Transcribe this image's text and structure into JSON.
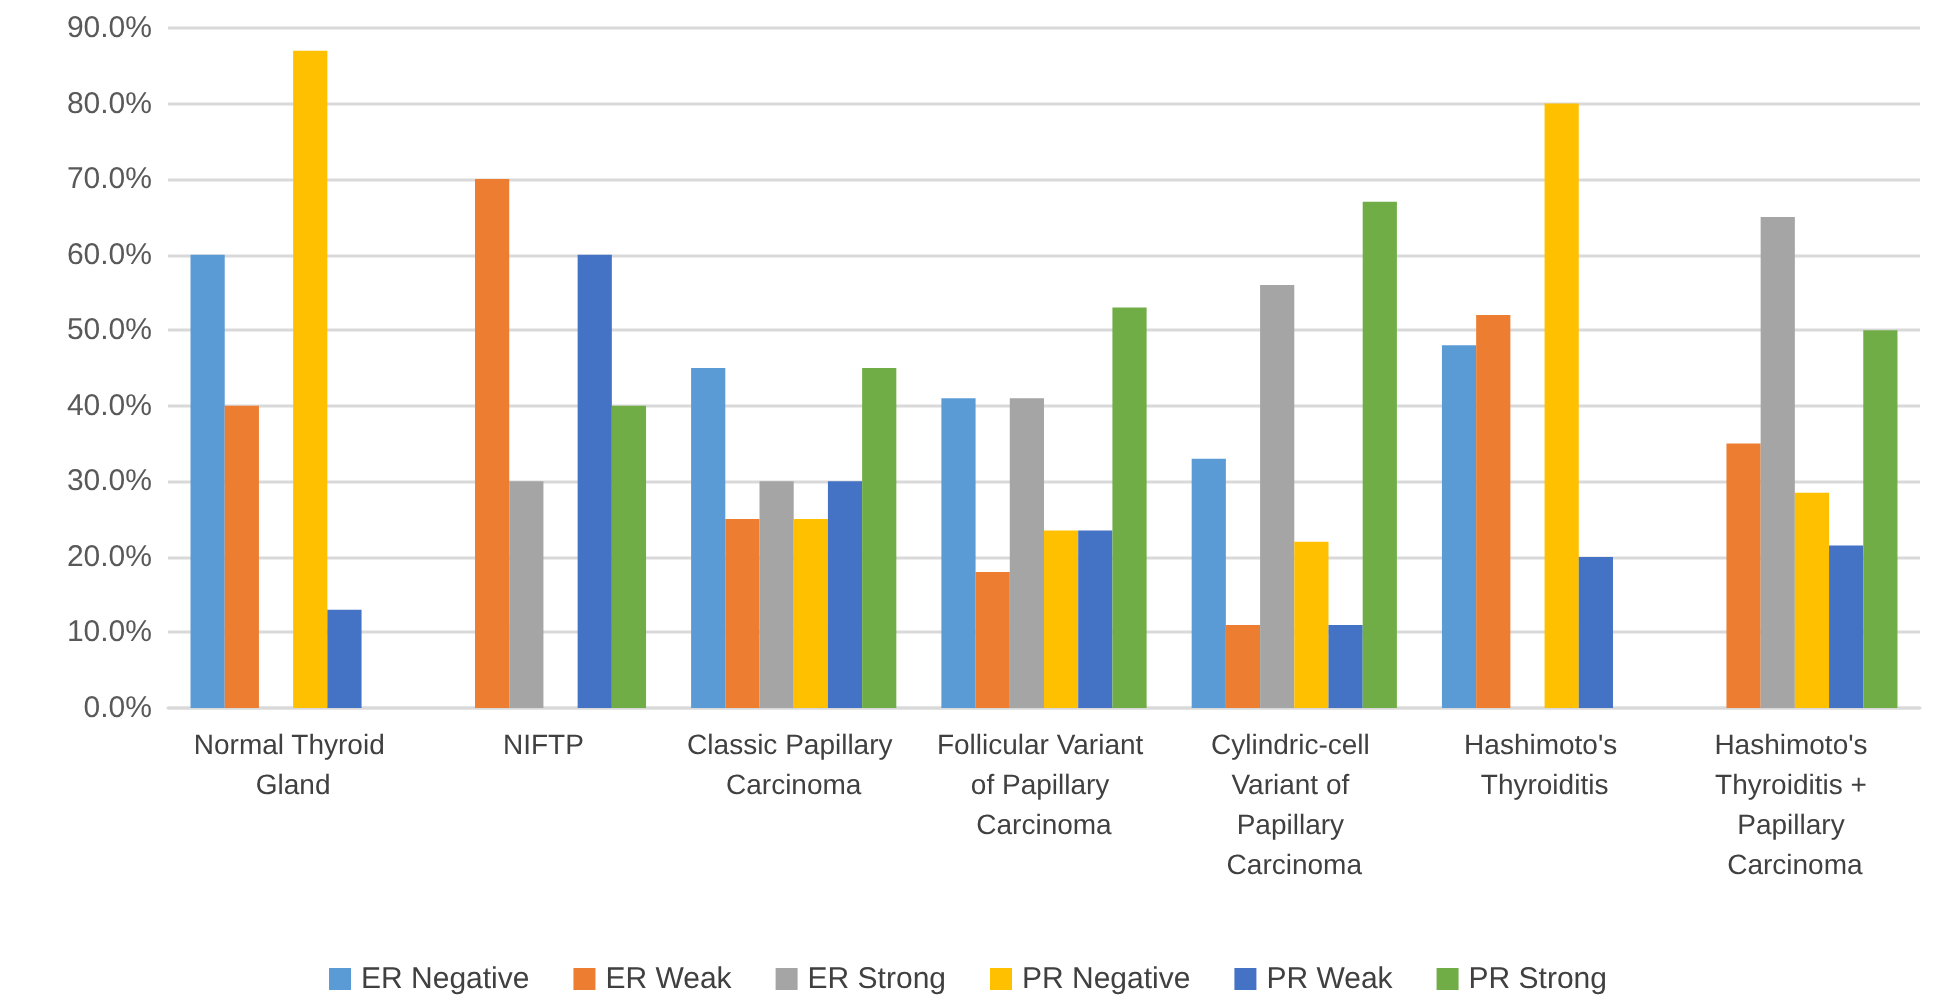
{
  "chart_data": {
    "type": "bar",
    "categories": [
      "Normal Thyroid Gland",
      "NIFTP",
      "Classic Papillary Carcinoma",
      "Follicular Variant of Papillary Carcinoma",
      "Cylindric-cell Variant of Papillary Carcinoma",
      "Hashimoto's Thyroiditis",
      "Hashimoto's Thyroiditis + Papillary Carcinoma"
    ],
    "series": [
      {
        "name": "ER Negative",
        "color": "#5b9bd5",
        "values": [
          60,
          0,
          45,
          41,
          33,
          48,
          0
        ]
      },
      {
        "name": "ER Weak",
        "color": "#ed7d31",
        "values": [
          40,
          70,
          25,
          18,
          11,
          52,
          35
        ]
      },
      {
        "name": "ER Strong",
        "color": "#a5a5a5",
        "values": [
          0,
          30,
          30,
          41,
          56,
          0,
          65
        ]
      },
      {
        "name": "PR Negative",
        "color": "#ffc000",
        "values": [
          87,
          0,
          25,
          23.5,
          22,
          80,
          28.5
        ]
      },
      {
        "name": "PR Weak",
        "color": "#4472c4",
        "values": [
          13,
          60,
          30,
          23.5,
          11,
          20,
          21.5
        ]
      },
      {
        "name": "PR Strong",
        "color": "#70ad47",
        "values": [
          0,
          40,
          45,
          53,
          67,
          0,
          50
        ]
      }
    ],
    "ylim": [
      0,
      90
    ],
    "yticks": [
      {
        "value": 0,
        "label": "0.0%"
      },
      {
        "value": 10,
        "label": "10.0%"
      },
      {
        "value": 20,
        "label": "20.0%"
      },
      {
        "value": 30,
        "label": "30.0%"
      },
      {
        "value": 40,
        "label": "40.0%"
      },
      {
        "value": 50,
        "label": "50.0%"
      },
      {
        "value": 60,
        "label": "60.0%"
      },
      {
        "value": 70,
        "label": "70.0%"
      },
      {
        "value": 80,
        "label": "80.0%"
      },
      {
        "value": 90,
        "label": "90.0%"
      }
    ],
    "grid": "y",
    "legend": "bottom"
  }
}
